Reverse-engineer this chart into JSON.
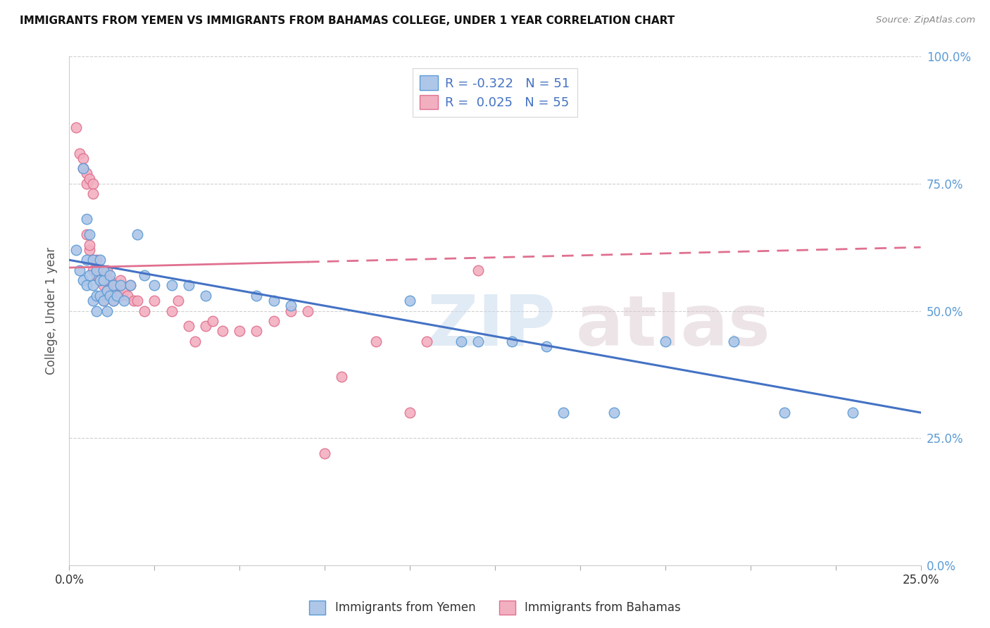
{
  "title": "IMMIGRANTS FROM YEMEN VS IMMIGRANTS FROM BAHAMAS COLLEGE, UNDER 1 YEAR CORRELATION CHART",
  "source": "Source: ZipAtlas.com",
  "ylabel": "College, Under 1 year",
  "legend_r1": "R = -0.322",
  "legend_n1": "N = 51",
  "legend_r2": "R =  0.025",
  "legend_n2": "N = 55",
  "yemen_fill": "#aec6e8",
  "bahamas_fill": "#f2afc0",
  "yemen_edge": "#5b9bd5",
  "bahamas_edge": "#e07090",
  "yemen_line": "#4472c4",
  "bahamas_line": "#e07090",
  "right_tick_color": "#5b9bd5",
  "watermark_zip_color": "#c5d8ed",
  "watermark_atlas_color": "#d8c5cc",
  "grid_color": "#d0d0d0",
  "xlim": [
    0.0,
    0.25
  ],
  "ylim": [
    0.0,
    1.0
  ],
  "x_ticks": [
    0.0,
    0.25
  ],
  "x_tick_labels": [
    "0.0%",
    "25.0%"
  ],
  "y_ticks": [
    0.0,
    0.25,
    0.5,
    0.75,
    1.0
  ],
  "y_tick_labels": [
    "0.0%",
    "25.0%",
    "50.0%",
    "75.0%",
    "100.0%"
  ],
  "yemen_trend": [
    0.0,
    0.25,
    0.6,
    0.3
  ],
  "bahamas_trend": [
    0.0,
    0.25,
    0.585,
    0.625
  ],
  "yemen_scatter": [
    [
      0.002,
      0.62
    ],
    [
      0.003,
      0.58
    ],
    [
      0.004,
      0.56
    ],
    [
      0.004,
      0.78
    ],
    [
      0.005,
      0.6
    ],
    [
      0.005,
      0.68
    ],
    [
      0.005,
      0.55
    ],
    [
      0.006,
      0.65
    ],
    [
      0.006,
      0.57
    ],
    [
      0.007,
      0.6
    ],
    [
      0.007,
      0.55
    ],
    [
      0.007,
      0.52
    ],
    [
      0.008,
      0.58
    ],
    [
      0.008,
      0.53
    ],
    [
      0.008,
      0.5
    ],
    [
      0.009,
      0.6
    ],
    [
      0.009,
      0.56
    ],
    [
      0.009,
      0.53
    ],
    [
      0.01,
      0.56
    ],
    [
      0.01,
      0.52
    ],
    [
      0.01,
      0.58
    ],
    [
      0.011,
      0.54
    ],
    [
      0.011,
      0.5
    ],
    [
      0.012,
      0.57
    ],
    [
      0.012,
      0.53
    ],
    [
      0.013,
      0.55
    ],
    [
      0.013,
      0.52
    ],
    [
      0.014,
      0.53
    ],
    [
      0.015,
      0.55
    ],
    [
      0.016,
      0.52
    ],
    [
      0.018,
      0.55
    ],
    [
      0.02,
      0.65
    ],
    [
      0.022,
      0.57
    ],
    [
      0.025,
      0.55
    ],
    [
      0.03,
      0.55
    ],
    [
      0.035,
      0.55
    ],
    [
      0.04,
      0.53
    ],
    [
      0.055,
      0.53
    ],
    [
      0.06,
      0.52
    ],
    [
      0.065,
      0.51
    ],
    [
      0.1,
      0.52
    ],
    [
      0.115,
      0.44
    ],
    [
      0.12,
      0.44
    ],
    [
      0.13,
      0.44
    ],
    [
      0.14,
      0.43
    ],
    [
      0.145,
      0.3
    ],
    [
      0.16,
      0.3
    ],
    [
      0.175,
      0.44
    ],
    [
      0.195,
      0.44
    ],
    [
      0.21,
      0.3
    ],
    [
      0.23,
      0.3
    ]
  ],
  "bahamas_scatter": [
    [
      0.002,
      0.86
    ],
    [
      0.003,
      0.81
    ],
    [
      0.004,
      0.8
    ],
    [
      0.004,
      0.78
    ],
    [
      0.005,
      0.77
    ],
    [
      0.005,
      0.75
    ],
    [
      0.006,
      0.76
    ],
    [
      0.007,
      0.75
    ],
    [
      0.007,
      0.73
    ],
    [
      0.005,
      0.65
    ],
    [
      0.006,
      0.62
    ],
    [
      0.006,
      0.63
    ],
    [
      0.007,
      0.6
    ],
    [
      0.007,
      0.58
    ],
    [
      0.008,
      0.6
    ],
    [
      0.008,
      0.57
    ],
    [
      0.009,
      0.56
    ],
    [
      0.009,
      0.58
    ],
    [
      0.01,
      0.57
    ],
    [
      0.01,
      0.55
    ],
    [
      0.01,
      0.52
    ],
    [
      0.011,
      0.56
    ],
    [
      0.011,
      0.58
    ],
    [
      0.011,
      0.54
    ],
    [
      0.012,
      0.56
    ],
    [
      0.013,
      0.54
    ],
    [
      0.013,
      0.52
    ],
    [
      0.014,
      0.55
    ],
    [
      0.015,
      0.53
    ],
    [
      0.015,
      0.56
    ],
    [
      0.016,
      0.54
    ],
    [
      0.017,
      0.53
    ],
    [
      0.018,
      0.55
    ],
    [
      0.019,
      0.52
    ],
    [
      0.02,
      0.52
    ],
    [
      0.022,
      0.5
    ],
    [
      0.025,
      0.52
    ],
    [
      0.03,
      0.5
    ],
    [
      0.032,
      0.52
    ],
    [
      0.035,
      0.47
    ],
    [
      0.037,
      0.44
    ],
    [
      0.04,
      0.47
    ],
    [
      0.042,
      0.48
    ],
    [
      0.045,
      0.46
    ],
    [
      0.05,
      0.46
    ],
    [
      0.055,
      0.46
    ],
    [
      0.06,
      0.48
    ],
    [
      0.065,
      0.5
    ],
    [
      0.07,
      0.5
    ],
    [
      0.075,
      0.22
    ],
    [
      0.08,
      0.37
    ],
    [
      0.09,
      0.44
    ],
    [
      0.1,
      0.3
    ],
    [
      0.105,
      0.44
    ],
    [
      0.12,
      0.58
    ]
  ]
}
